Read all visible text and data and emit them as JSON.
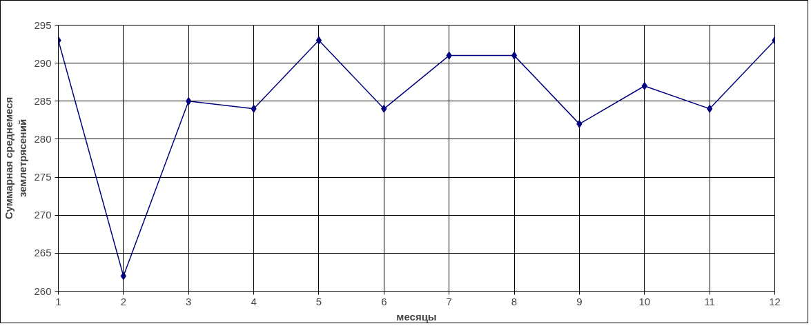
{
  "chart_data": {
    "type": "line",
    "xlabel": "месяцы",
    "ylabel": "Суммарная среднемеся\nземлетрясений",
    "x": [
      1,
      2,
      3,
      4,
      5,
      6,
      7,
      8,
      9,
      10,
      11,
      12
    ],
    "series": [
      {
        "color": "#000080",
        "values": [
          293,
          262,
          285,
          284,
          293,
          284,
          291,
          291,
          282,
          287,
          284,
          293
        ]
      }
    ],
    "xlim": [
      1,
      12
    ],
    "xticks": [
      1,
      2,
      3,
      4,
      5,
      6,
      7,
      8,
      9,
      10,
      11,
      12
    ],
    "ylim": [
      260,
      295
    ],
    "yticks": [
      260,
      265,
      270,
      275,
      280,
      285,
      290,
      295
    ],
    "grid": true,
    "marker": "diamond",
    "line_style": "solid"
  }
}
